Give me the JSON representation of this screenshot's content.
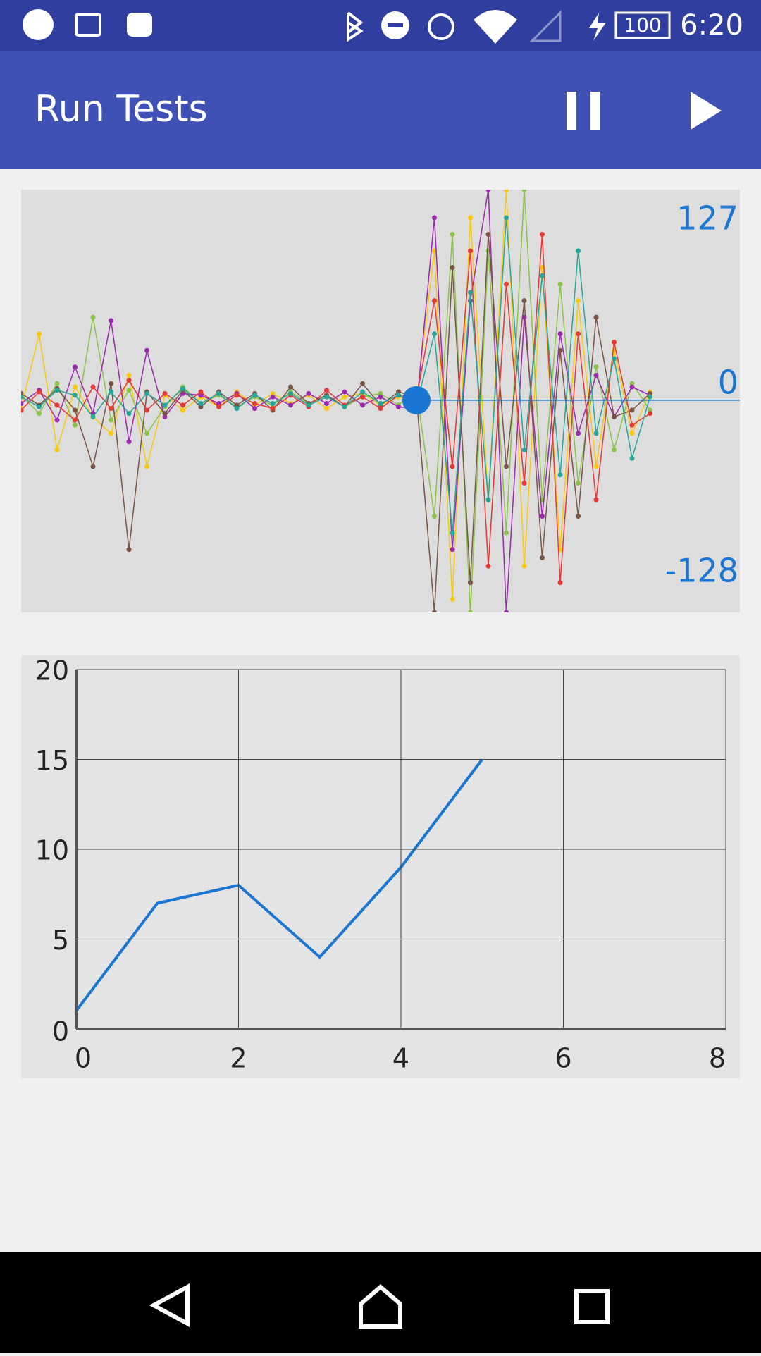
{
  "status_bar": {
    "battery": "100",
    "time": "6:20"
  },
  "app_bar": {
    "title": "Run Tests"
  },
  "chart_data": [
    {
      "type": "line",
      "markers": true,
      "x": [
        0,
        1,
        2,
        3,
        4,
        5,
        6,
        7,
        8,
        9,
        10,
        11,
        12,
        13,
        14,
        15,
        16,
        17,
        18,
        19,
        20,
        21,
        22,
        23,
        24,
        25,
        26,
        27,
        28,
        29,
        30,
        31,
        32,
        33,
        34,
        35
      ],
      "series": [
        {
          "color": "#f9c80e",
          "values": [
            -5,
            40,
            -30,
            8,
            -10,
            -20,
            15,
            -40,
            3,
            -6,
            2,
            -4,
            5,
            -3,
            4,
            -2,
            3,
            -5,
            2,
            4,
            -3,
            2,
            0,
            90,
            -120,
            110,
            -60,
            127,
            -100,
            80,
            -90,
            60,
            -40,
            30,
            -20,
            5
          ]
        },
        {
          "color": "#8bc34a",
          "values": [
            3,
            -8,
            10,
            -15,
            50,
            -12,
            6,
            -20,
            -4,
            8,
            -2,
            3,
            -4,
            2,
            -3,
            5,
            -2,
            3,
            -4,
            2,
            4,
            -3,
            6,
            -70,
            100,
            -128,
            90,
            -80,
            127,
            -60,
            70,
            -50,
            20,
            -30,
            10,
            -6
          ]
        },
        {
          "color": "#9c27b0",
          "values": [
            -2,
            6,
            -12,
            20,
            -8,
            48,
            -25,
            30,
            -10,
            4,
            3,
            -2,
            4,
            -5,
            2,
            -3,
            4,
            -2,
            5,
            -3,
            2,
            -4,
            -5,
            110,
            -90,
            60,
            127,
            -128,
            50,
            -70,
            40,
            -20,
            15,
            -10,
            8,
            3
          ]
        },
        {
          "color": "#795548",
          "values": [
            4,
            -3,
            7,
            -6,
            -40,
            10,
            -90,
            5,
            -8,
            6,
            -4,
            5,
            -3,
            4,
            -6,
            8,
            -2,
            3,
            -4,
            10,
            -3,
            5,
            2,
            -128,
            80,
            -110,
            100,
            -40,
            60,
            -95,
            30,
            -70,
            50,
            -10,
            -6,
            4
          ]
        },
        {
          "color": "#e53935",
          "values": [
            -6,
            5,
            -3,
            -12,
            8,
            -5,
            12,
            -6,
            4,
            -3,
            5,
            -4,
            3,
            -2,
            -5,
            3,
            -4,
            6,
            -3,
            2,
            -5,
            3,
            1,
            60,
            -40,
            90,
            -100,
            70,
            -50,
            100,
            -110,
            40,
            -60,
            35,
            -15,
            -8
          ]
        },
        {
          "color": "#26a69a",
          "values": [
            2,
            -4,
            6,
            3,
            -10,
            5,
            -8,
            4,
            -3,
            7,
            -2,
            4,
            -5,
            3,
            -2,
            4,
            -3,
            2,
            -4,
            5,
            -2,
            3,
            -3,
            40,
            -80,
            65,
            -60,
            110,
            -30,
            75,
            -45,
            90,
            -20,
            25,
            -35,
            2
          ]
        }
      ],
      "xlim": [
        0,
        40
      ],
      "ylim": [
        -128,
        127
      ],
      "yticks": [
        -128,
        0,
        127
      ],
      "tick_color": "#1976d2",
      "cursor": {
        "x": 22,
        "y": 0,
        "color": "#1976d2"
      }
    },
    {
      "type": "line",
      "x": [
        0,
        1,
        2,
        3,
        4,
        5
      ],
      "values": [
        1,
        7,
        8,
        4,
        9,
        15
      ],
      "color": "#1976d2",
      "xlim": [
        0,
        8
      ],
      "ylim": [
        0,
        20
      ],
      "xticks": [
        0,
        2,
        4,
        6,
        8
      ],
      "yticks": [
        0,
        5,
        10,
        15,
        20
      ],
      "grid": true
    }
  ]
}
